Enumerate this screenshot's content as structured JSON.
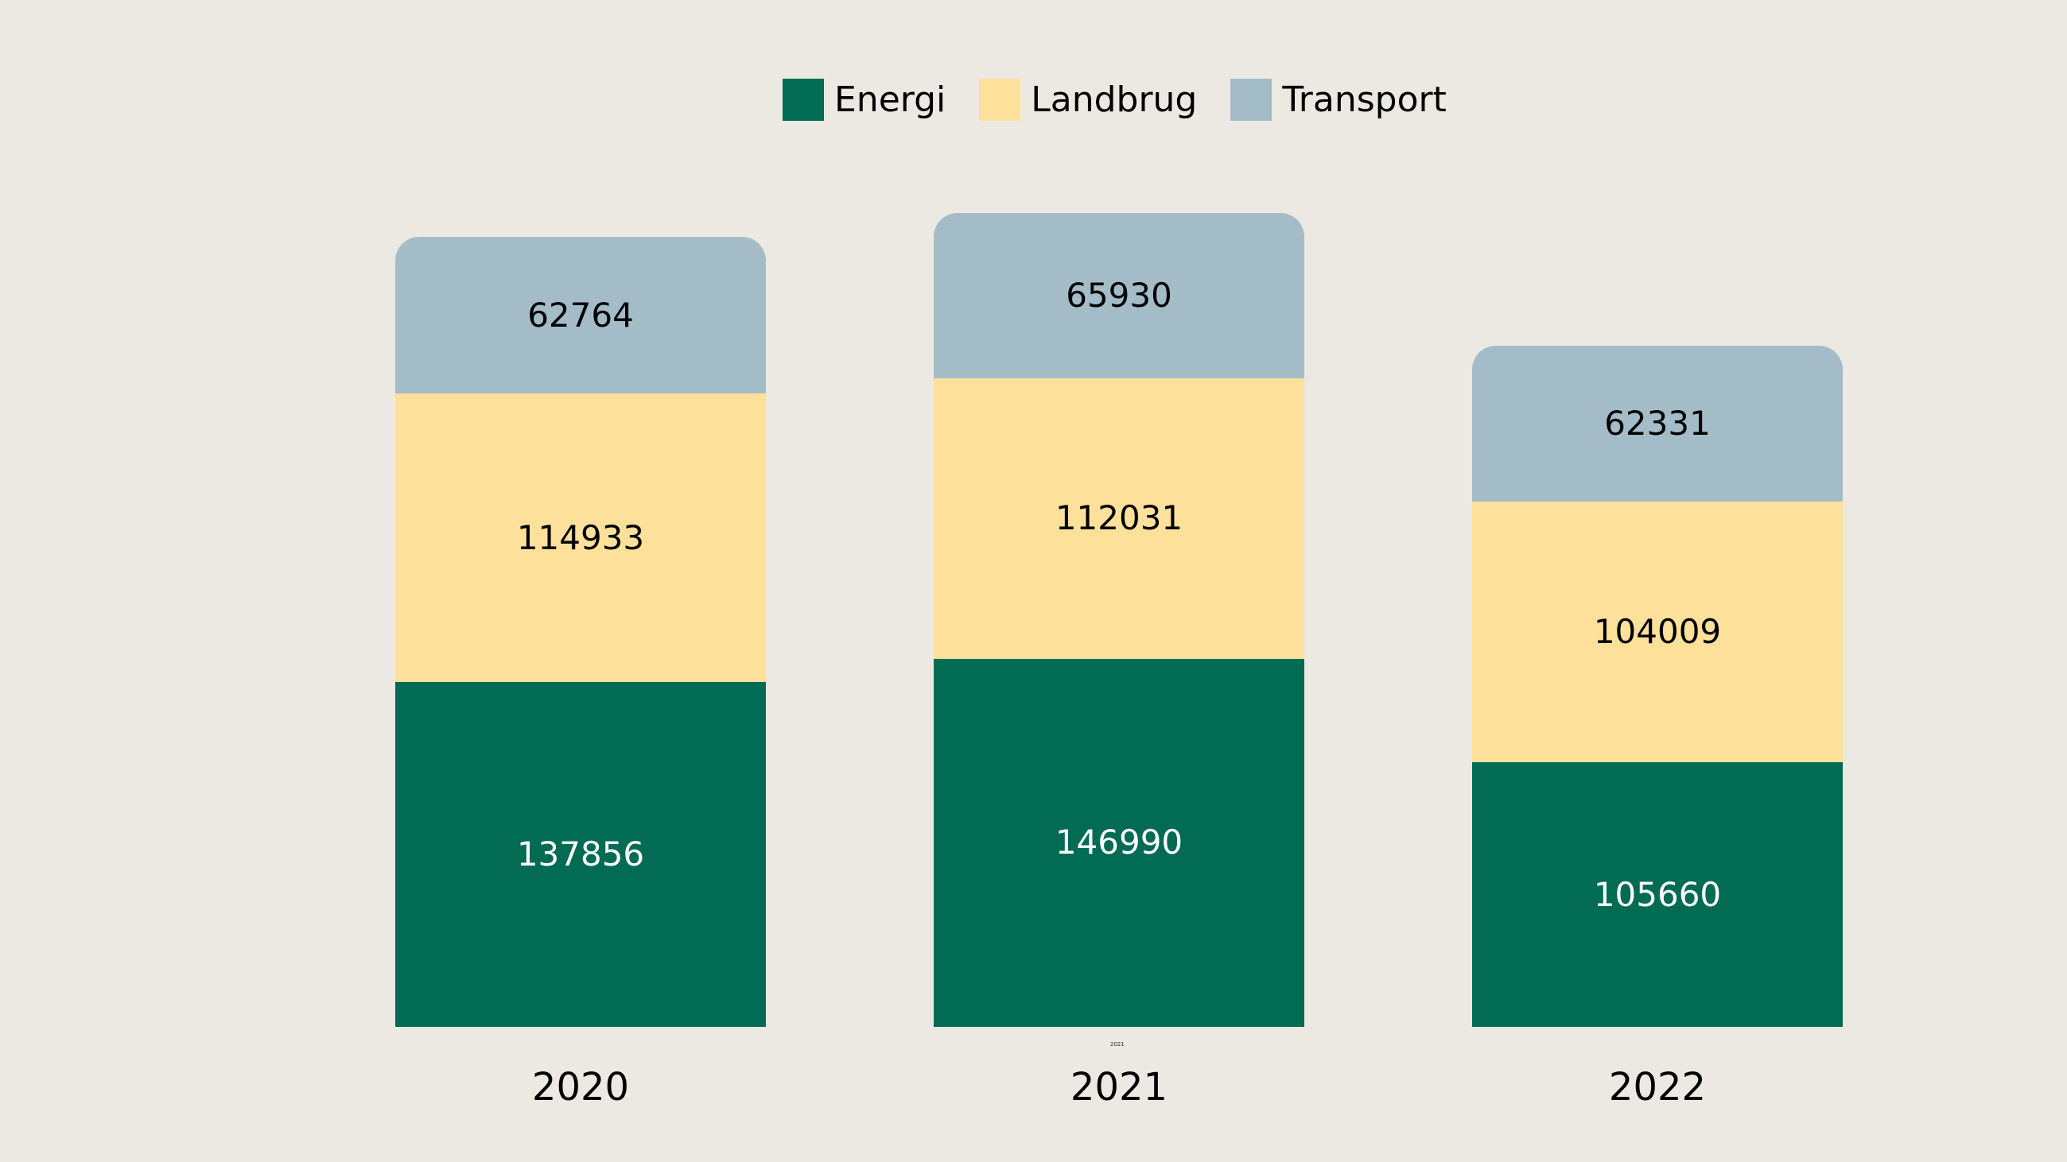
{
  "chart_data": {
    "type": "bar",
    "stacked": true,
    "orientation": "vertical",
    "categories": [
      "2020",
      "2021",
      "2022"
    ],
    "series": [
      {
        "name": "Energi",
        "color": "#016b53",
        "label_color": "#ffffff",
        "values": [
          137856,
          146990,
          105660
        ]
      },
      {
        "name": "Landbrug",
        "color": "#fde09a",
        "label_color": "#000000",
        "values": [
          114933,
          112031,
          104009
        ]
      },
      {
        "name": "Transport",
        "color": "#a4bcc8",
        "label_color": "#000000",
        "values": [
          62764,
          65930,
          62331
        ]
      }
    ],
    "totals": [
      315553,
      324951,
      272000
    ],
    "legend_position": "top",
    "legend_entries": [
      "Energi",
      "Landbrug",
      "Transport"
    ],
    "bar_value_labels_visible": true,
    "axes_visible": false,
    "grid": false,
    "background_color": "#ece9e2"
  },
  "artifacts": {
    "tiny_duplicate_tick_label": "2021"
  }
}
